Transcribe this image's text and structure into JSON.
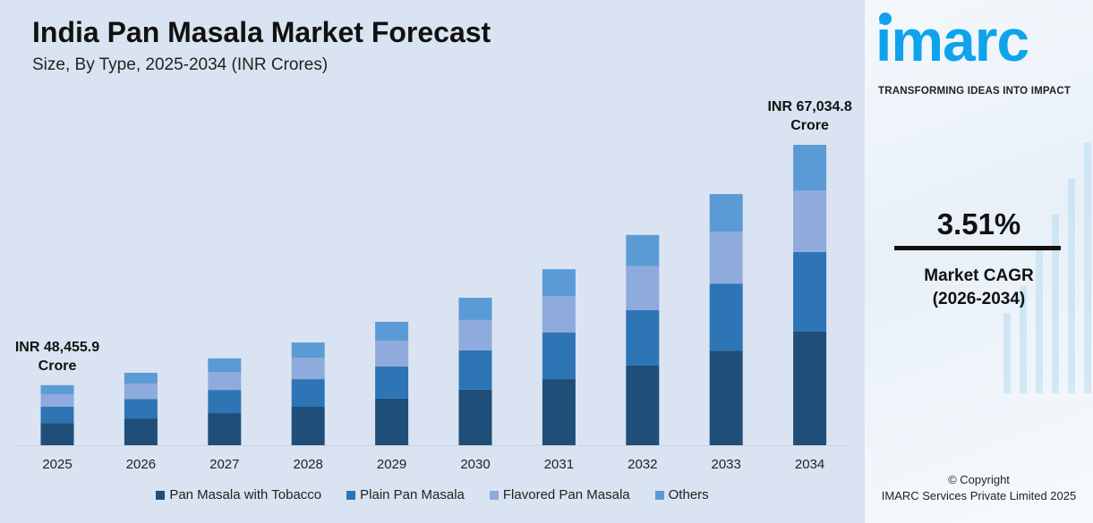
{
  "header": {
    "title": "India Pan Masala Market Forecast",
    "subtitle": "Size, By Type, 2025-2034 (INR Crores)"
  },
  "chart_data": {
    "type": "bar",
    "stacked": true,
    "title": "India Pan Masala Market Forecast",
    "subtitle": "Size, By Type, 2025-2034 (INR Crores)",
    "value_units": "relative bar height index (2034 total = 100); no value axis printed",
    "categories": [
      "2025",
      "2026",
      "2027",
      "2028",
      "2029",
      "2030",
      "2031",
      "2032",
      "2033",
      "2034"
    ],
    "series": [
      {
        "name": "Pan Masala with Tobacco",
        "color": "#1f4e79",
        "values": [
          7.4,
          8.9,
          10.7,
          12.8,
          15.5,
          18.5,
          22.0,
          26.5,
          31.5,
          37.8
        ]
      },
      {
        "name": "Plain Pan Masala",
        "color": "#2e75b6",
        "values": [
          5.4,
          6.5,
          7.7,
          9.2,
          10.7,
          13.1,
          15.5,
          18.5,
          22.3,
          26.5
        ]
      },
      {
        "name": "Flavored Pan Masala",
        "color": "#8faadc",
        "values": [
          4.2,
          5.1,
          6.0,
          7.1,
          8.6,
          10.1,
          12.2,
          14.6,
          17.3,
          20.5
        ]
      },
      {
        "name": "Others",
        "color": "#5b9bd5",
        "values": [
          3.0,
          3.6,
          4.5,
          5.1,
          6.3,
          7.4,
          8.9,
          10.4,
          12.5,
          15.2
        ]
      }
    ],
    "annotations": [
      {
        "category": "2025",
        "line1": "INR 48,455.9",
        "line2": "Crore"
      },
      {
        "category": "2034",
        "line1": "INR 67,034.8",
        "line2": "Crore"
      }
    ],
    "grid": false,
    "legend": "bottom"
  },
  "sidebar": {
    "logo": "imarc",
    "tagline": "TRANSFORMING IDEAS INTO IMPACT",
    "cagr_value": "3.51%",
    "cagr_label": "Market CAGR",
    "cagr_period": "(2026-2034)",
    "copyright": "© Copyright",
    "company": "IMARC Services Private Limited 2025"
  }
}
